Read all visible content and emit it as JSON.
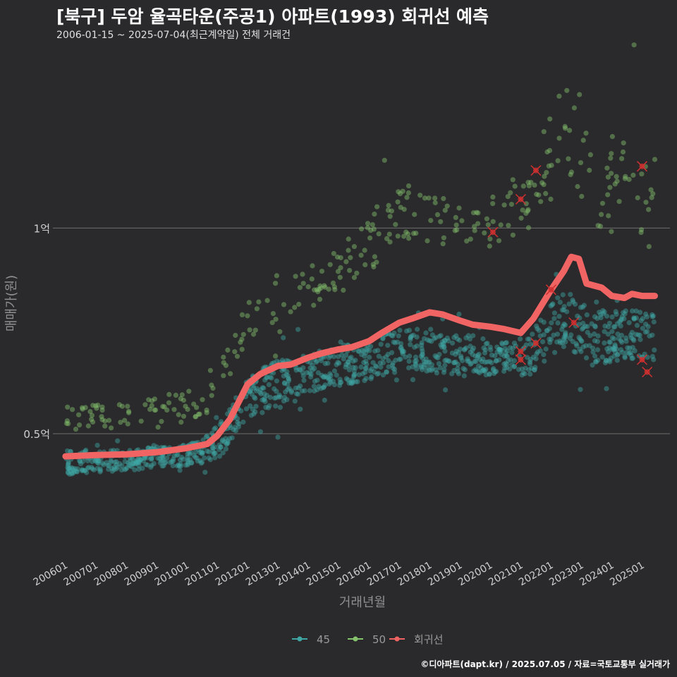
{
  "title": "[북구] 두암 율곡타운(주공1) 아파트(1993) 회귀선 예측",
  "subtitle": "2006-01-15 ~ 2025-07-04(최근계약일) 전체 거래건",
  "caption": "©디아파트(dapt.kr) / 2025.07.05 / 자료=국토교통부 실거래가",
  "colors": {
    "background": "#2a2a2c",
    "grid": "#6e6e6e",
    "series_45": "#3fa6a3",
    "series_50": "#86c46c",
    "regression": "#f06464",
    "outlier": "#d03030"
  },
  "chart_data": {
    "type": "scatter",
    "xlabel": "거래년월",
    "ylabel": "매매가(원)",
    "x_range": [
      "2005-08",
      "2025-12"
    ],
    "ylim": [
      20000000,
      140000000
    ],
    "y_ticks": [
      {
        "value": 50000000,
        "label": "0.5억"
      },
      {
        "value": 100000000,
        "label": "1억"
      }
    ],
    "x_ticks": [
      "200601",
      "200701",
      "200801",
      "200901",
      "201001",
      "201101",
      "201201",
      "201301",
      "201401",
      "201501",
      "201601",
      "201701",
      "201801",
      "201901",
      "202001",
      "202101",
      "202201",
      "202301",
      "202401",
      "202501"
    ],
    "grid": "horizontal",
    "legend": {
      "position": "bottom",
      "entries": [
        "45",
        "50",
        "회귀선"
      ]
    },
    "series": [
      {
        "name": "45",
        "band": [
          [
            "2006-01",
            40000000,
            46000000
          ],
          [
            "2008-01",
            41000000,
            46000000
          ],
          [
            "2010-06",
            42500000,
            48000000
          ],
          [
            "2011-04",
            45000000,
            54000000
          ],
          [
            "2012-01",
            54000000,
            64000000
          ],
          [
            "2013-01",
            56000000,
            68000000
          ],
          [
            "2014-01",
            60000000,
            70000000
          ],
          [
            "2015-06",
            62000000,
            72000000
          ],
          [
            "2016-06",
            64000000,
            74000000
          ],
          [
            "2017-06",
            66000000,
            76000000
          ],
          [
            "2018-06",
            64000000,
            75000000
          ],
          [
            "2019-06",
            64000000,
            74000000
          ],
          [
            "2020-06",
            64000000,
            72000000
          ],
          [
            "2021-06",
            64000000,
            76000000
          ],
          [
            "2022-06",
            72000000,
            85000000
          ],
          [
            "2023-06",
            66000000,
            80000000
          ],
          [
            "2024-06",
            68000000,
            80000000
          ],
          [
            "2025-06",
            68000000,
            80000000
          ]
        ]
      },
      {
        "name": "50",
        "band": [
          [
            "2006-01",
            51000000,
            56000000
          ],
          [
            "2008-01",
            51000000,
            58000000
          ],
          [
            "2010-06",
            52000000,
            62000000
          ],
          [
            "2011-06",
            64000000,
            73000000
          ],
          [
            "2012-06",
            76000000,
            88000000
          ],
          [
            "2013-06",
            78000000,
            90000000
          ],
          [
            "2014-06",
            82000000,
            92000000
          ],
          [
            "2015-06",
            85000000,
            98000000
          ],
          [
            "2016-06",
            92000000,
            108000000
          ],
          [
            "2017-06",
            96000000,
            112000000
          ],
          [
            "2018-06",
            96000000,
            108000000
          ],
          [
            "2019-06",
            95000000,
            104000000
          ],
          [
            "2020-06",
            96000000,
            110000000
          ],
          [
            "2021-06",
            100000000,
            118000000
          ],
          [
            "2022-06",
            110000000,
            135000000
          ],
          [
            "2023-06",
            100000000,
            120000000
          ],
          [
            "2024-06",
            96000000,
            125000000
          ],
          [
            "2025-06",
            90000000,
            120000000
          ]
        ]
      },
      {
        "name": "회귀선",
        "x": [
          "2006-01",
          "2007-01",
          "2008-01",
          "2009-01",
          "2010-01",
          "2010-09",
          "2011-01",
          "2011-06",
          "2012-01",
          "2012-06",
          "2013-01",
          "2013-06",
          "2014-01",
          "2014-06",
          "2015-01",
          "2015-06",
          "2016-01",
          "2016-06",
          "2017-01",
          "2017-06",
          "2018-01",
          "2018-06",
          "2019-01",
          "2019-06",
          "2020-01",
          "2020-06",
          "2021-01",
          "2021-06",
          "2022-01",
          "2022-06",
          "2022-09",
          "2022-12",
          "2023-03",
          "2023-06",
          "2023-09",
          "2024-01",
          "2024-06",
          "2024-09",
          "2025-01",
          "2025-06"
        ],
        "y": [
          44500000,
          44800000,
          45000000,
          45500000,
          46500000,
          47500000,
          49500000,
          53500000,
          62000000,
          64500000,
          66500000,
          66800000,
          68500000,
          69500000,
          70500000,
          71000000,
          72500000,
          74500000,
          77000000,
          78000000,
          79500000,
          79000000,
          77500000,
          76500000,
          76000000,
          75500000,
          74500000,
          78000000,
          85000000,
          89500000,
          93000000,
          92500000,
          86500000,
          86000000,
          85500000,
          83500000,
          83000000,
          84000000,
          83500000,
          83500000
        ]
      }
    ],
    "highlighted_points": [
      {
        "x": "2020-02",
        "y": 99000000
      },
      {
        "x": "2021-01",
        "y": 107000000
      },
      {
        "x": "2021-07",
        "y": 114000000
      },
      {
        "x": "2021-01",
        "y": 70000000
      },
      {
        "x": "2021-01",
        "y": 68000000
      },
      {
        "x": "2021-07",
        "y": 72000000
      },
      {
        "x": "2022-01",
        "y": 85000000
      },
      {
        "x": "2022-10",
        "y": 77000000
      },
      {
        "x": "2025-01",
        "y": 115000000
      },
      {
        "x": "2025-01",
        "y": 68000000
      },
      {
        "x": "2025-03",
        "y": 65000000
      }
    ]
  }
}
